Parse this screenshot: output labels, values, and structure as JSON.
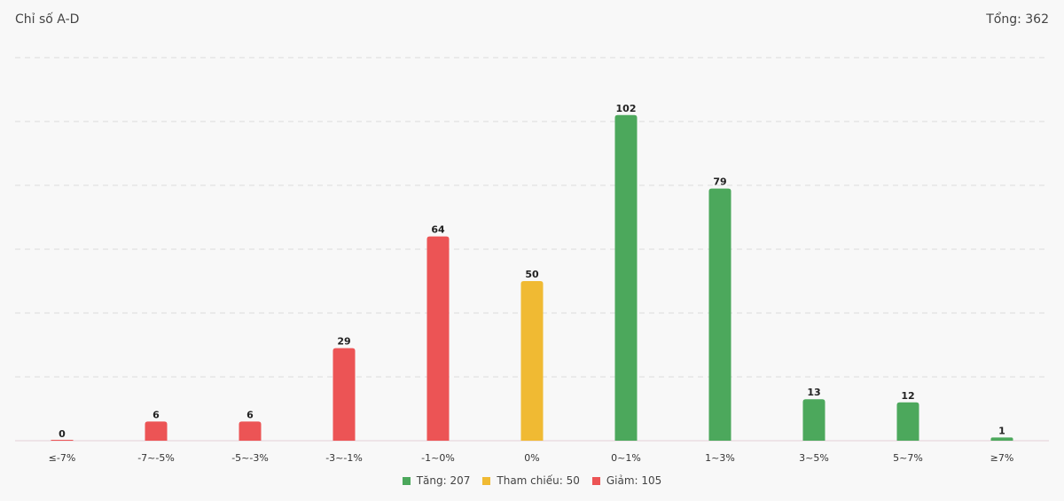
{
  "header": {
    "title": "Chỉ số A-D",
    "total": "Tổng: 362"
  },
  "legend": {
    "items": [
      {
        "label": "Tăng: 207",
        "color": "#4ca85c"
      },
      {
        "label": "Tham chiếu: 50",
        "color": "#f0ba33"
      },
      {
        "label": "Giảm: 105",
        "color": "#ec5455"
      }
    ]
  },
  "colors": {
    "up": "#4ca85c",
    "ref": "#f0ba33",
    "down": "#ec5455",
    "grid": "#dddddd",
    "baseline": "#e4cfd8"
  },
  "chart_data": {
    "type": "bar",
    "title": "Chỉ số A-D",
    "categories": [
      "≤-7%",
      "-7~-5%",
      "-5~-3%",
      "-3~-1%",
      "-1~0%",
      "0%",
      "0~1%",
      "1~3%",
      "3~5%",
      "5~7%",
      "≥7%"
    ],
    "values": [
      0,
      6,
      6,
      29,
      64,
      50,
      102,
      79,
      13,
      12,
      1
    ],
    "groups": [
      "down",
      "down",
      "down",
      "down",
      "down",
      "ref",
      "up",
      "up",
      "up",
      "up",
      "up"
    ],
    "ylim": [
      0,
      120
    ],
    "grid": true,
    "legend_position": "bottom"
  }
}
